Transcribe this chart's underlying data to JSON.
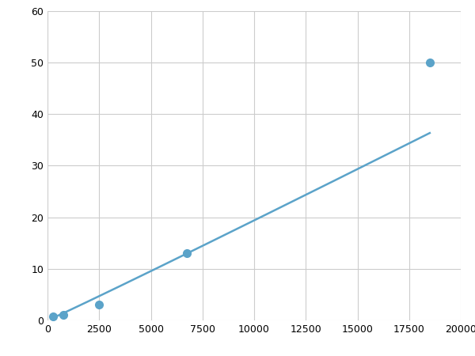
{
  "x": [
    250,
    750,
    2500,
    6750,
    18500
  ],
  "y": [
    0.7,
    1.0,
    3.0,
    13.0,
    50.0
  ],
  "line_color": "#5ba3c9",
  "marker_color": "#5ba3c9",
  "marker_size": 7,
  "line_width": 1.8,
  "xlim": [
    0,
    20000
  ],
  "ylim": [
    0,
    60
  ],
  "xticks": [
    0,
    2500,
    5000,
    7500,
    10000,
    12500,
    15000,
    17500,
    20000
  ],
  "yticks": [
    0,
    10,
    20,
    30,
    40,
    50,
    60
  ],
  "xtick_labels": [
    "0",
    "2500",
    "5000",
    "7500",
    "10000",
    "12500",
    "15000",
    "17500",
    "20000"
  ],
  "ytick_labels": [
    "0",
    "10",
    "20",
    "30",
    "40",
    "50",
    "60"
  ],
  "grid_color": "#cccccc",
  "background_color": "#ffffff",
  "figure_background": "#ffffff"
}
